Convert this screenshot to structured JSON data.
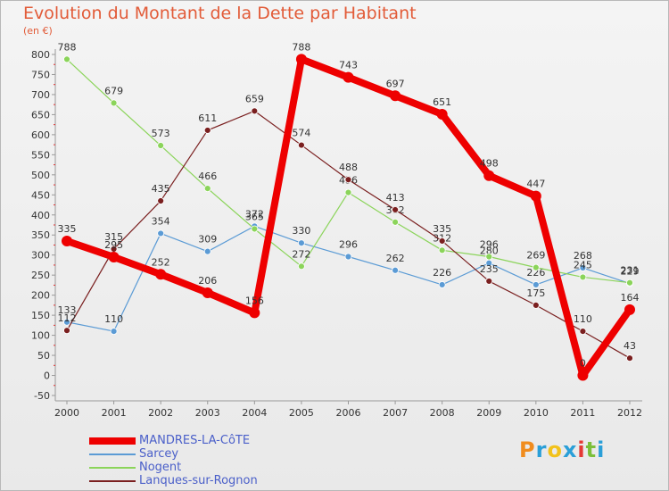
{
  "header": {
    "title": "Evolution du Montant de la Dette par Habitant",
    "unit": "(en €)"
  },
  "logo": {
    "text": "Proxiti",
    "colors": [
      "#f08c1e",
      "#2a9fd8",
      "#f2c21b",
      "#2a9fd8",
      "#e53935",
      "#7cbf3a",
      "#2a9fd8"
    ]
  },
  "chart_data": {
    "type": "line",
    "title": "Evolution du Montant de la Dette par Habitant",
    "ylabel": "(en €)",
    "xlabel": "",
    "x": [
      "2000",
      "2001",
      "2002",
      "2003",
      "2004",
      "2005",
      "2006",
      "2007",
      "2008",
      "2009",
      "2010",
      "2011",
      "2012"
    ],
    "ylim": [
      -50,
      800
    ],
    "yticks": [
      -50,
      0,
      50,
      100,
      150,
      200,
      250,
      300,
      350,
      400,
      450,
      500,
      550,
      600,
      650,
      700,
      750,
      800
    ],
    "grid": false,
    "legend": "bottom-left",
    "series": [
      {
        "name": "MANDRES-LA-CôTE",
        "color": "#ee0000",
        "width": 8,
        "values": [
          335,
          295,
          252,
          206,
          156,
          788,
          743,
          697,
          651,
          498,
          447,
          0,
          164
        ],
        "labels": [
          "335",
          "295",
          "252",
          "206",
          "156",
          "788",
          "743",
          "697",
          "651",
          "498",
          "447",
          "0",
          "164"
        ]
      },
      {
        "name": "Sarcey",
        "color": "#5b9bd5",
        "width": 1.2,
        "values": [
          133,
          110,
          354,
          309,
          372,
          330,
          296,
          262,
          226,
          280,
          226,
          268,
          229
        ],
        "labels": [
          "133",
          "110",
          "354",
          "309",
          "372",
          "330",
          "296",
          "262",
          "226",
          "280",
          "226",
          "268",
          "229"
        ]
      },
      {
        "name": "Nogent",
        "color": "#8bd45a",
        "width": 1.2,
        "values": [
          788,
          679,
          573,
          466,
          365,
          272,
          456,
          382,
          312,
          296,
          269,
          245,
          231
        ],
        "labels": [
          "788",
          "679",
          "573",
          "466",
          "365",
          "272",
          "456",
          "382",
          "312",
          "296",
          "269",
          "245",
          "231"
        ]
      },
      {
        "name": "Lanques-sur-Rognon",
        "color": "#7a1f1f",
        "width": 1.2,
        "values": [
          112,
          315,
          435,
          611,
          659,
          574,
          488,
          413,
          335,
          235,
          175,
          110,
          43
        ],
        "labels": [
          "112",
          "315",
          "435",
          "611",
          "659",
          "574",
          "488",
          "413",
          "335",
          "235",
          "175",
          "110",
          "43"
        ]
      }
    ]
  }
}
